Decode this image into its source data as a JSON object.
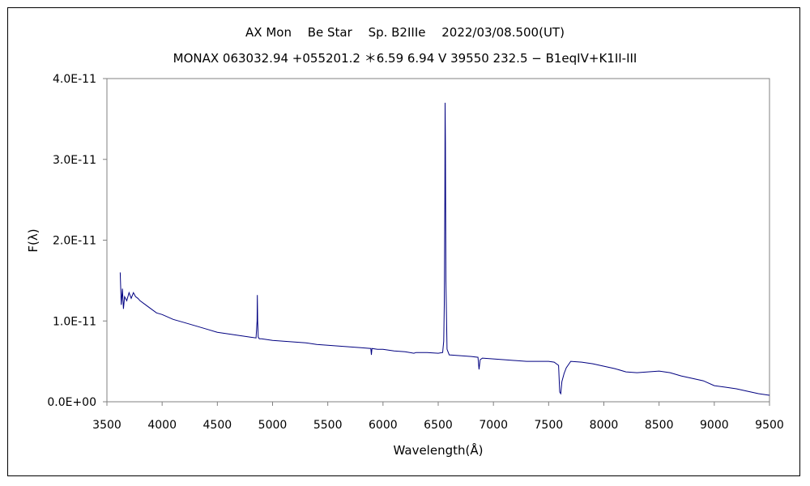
{
  "chart_data": {
    "type": "line",
    "title": "AX Mon　 Be Star　 Sp. B2IIIe　 2022/03/08.500(UT)",
    "subtitle": "MONAX 063032.94 +055201.2 ＊6.59 6.94 V 39550 232.5 − B1eqIV+K1II-III",
    "xlabel": "Wavelength(Å)",
    "ylabel": "F(λ)",
    "xlim": [
      3500,
      9500
    ],
    "ylim": [
      0,
      4e-11
    ],
    "x_ticks": [
      "3500",
      "4000",
      "4500",
      "5000",
      "5500",
      "6000",
      "6500",
      "7000",
      "7500",
      "8000",
      "8500",
      "9000",
      "9500"
    ],
    "y_ticks": [
      "0.0E+00",
      "1.0E-11",
      "2.0E-11",
      "3.0E-11",
      "4.0E-11"
    ],
    "grid": false,
    "line_color": "#000080",
    "series": [
      {
        "x": [
          3620,
          3630,
          3640,
          3650,
          3660,
          3680,
          3700,
          3720,
          3740,
          3760,
          3780,
          3800,
          3850,
          3900,
          3950,
          4000,
          4100,
          4200,
          4300,
          4400,
          4500,
          4600,
          4700,
          4800,
          4850,
          4860,
          4862,
          4865,
          4870,
          4880,
          4900,
          5000,
          5100,
          5200,
          5300,
          5400,
          5500,
          5600,
          5700,
          5800,
          5890,
          5895,
          5900,
          5950,
          6000,
          6100,
          6200,
          6280,
          6300,
          6400,
          6500,
          6540,
          6550,
          6555,
          6560,
          6562,
          6565,
          6570,
          6580,
          6600,
          6700,
          6800,
          6860,
          6870,
          6880,
          6900,
          7000,
          7100,
          7200,
          7300,
          7400,
          7500,
          7550,
          7590,
          7600,
          7610,
          7620,
          7640,
          7660,
          7700,
          7800,
          7900,
          8000,
          8100,
          8200,
          8300,
          8400,
          8500,
          8600,
          8700,
          8800,
          8900,
          9000,
          9100,
          9200,
          9300,
          9400,
          9500
        ],
        "y": [
          1.6e-11,
          1.2e-11,
          1.4e-11,
          1.15e-11,
          1.3e-11,
          1.25e-11,
          1.35e-11,
          1.28e-11,
          1.35e-11,
          1.3e-11,
          1.28e-11,
          1.25e-11,
          1.2e-11,
          1.15e-11,
          1.1e-11,
          1.08e-11,
          1.02e-11,
          9.8e-12,
          9.4e-12,
          9e-12,
          8.6e-12,
          8.4e-12,
          8.2e-12,
          8e-12,
          7.9e-12,
          1e-11,
          1.32e-11,
          1e-11,
          8e-12,
          7.8e-12,
          7.8e-12,
          7.6e-12,
          7.5e-12,
          7.4e-12,
          7.3e-12,
          7.1e-12,
          7e-12,
          6.9e-12,
          6.8e-12,
          6.7e-12,
          6.6e-12,
          5.8e-12,
          6.6e-12,
          6.5e-12,
          6.5e-12,
          6.3e-12,
          6.2e-12,
          6e-12,
          6.1e-12,
          6.1e-12,
          6e-12,
          6.1e-12,
          7.5e-12,
          1.2e-11,
          2.5e-11,
          3.7e-11,
          3.2e-11,
          1.5e-11,
          6.5e-12,
          5.8e-12,
          5.7e-12,
          5.6e-12,
          5.5e-12,
          4e-12,
          5.2e-12,
          5.4e-12,
          5.3e-12,
          5.2e-12,
          5.1e-12,
          5e-12,
          5e-12,
          5e-12,
          4.9e-12,
          4.5e-12,
          1.2e-12,
          1e-12,
          2.5e-12,
          3.5e-12,
          4.2e-12,
          5e-12,
          4.9e-12,
          4.7e-12,
          4.4e-12,
          4.1e-12,
          3.7e-12,
          3.6e-12,
          3.7e-12,
          3.8e-12,
          3.6e-12,
          3.2e-12,
          2.9e-12,
          2.6e-12,
          2e-12,
          1.8e-12,
          1.6e-12,
          1.3e-12,
          1e-12,
          8e-13
        ]
      }
    ]
  }
}
